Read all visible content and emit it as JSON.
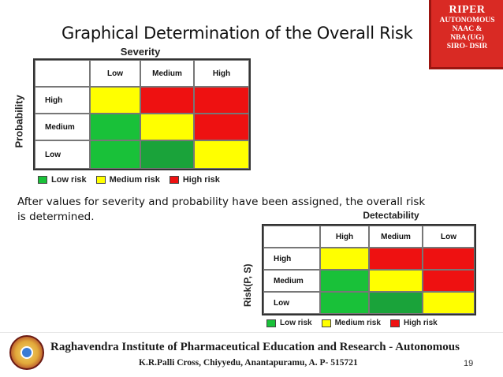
{
  "slide": {
    "title": "Graphical Determination of the Overall Risk",
    "body_text": "After values for severity and probability have been assigned, the overall risk is determined.",
    "page_number": "19"
  },
  "badge": {
    "title": "RIPER",
    "lines": [
      "AUTONOMOUS",
      "NAAC &",
      "NBA (UG)",
      "SIRO- DSIR"
    ]
  },
  "matrix1": {
    "top_axis": "Severity",
    "side_axis": "Probability",
    "col_headers": [
      "Low",
      "Medium",
      "High"
    ],
    "rows": [
      {
        "label": "High",
        "cells": [
          "yellow",
          "red",
          "red"
        ]
      },
      {
        "label": "Medium",
        "cells": [
          "green",
          "yellow",
          "red"
        ]
      },
      {
        "label": "Low",
        "cells": [
          "green",
          "green-dk",
          "yellow"
        ]
      }
    ]
  },
  "matrix2": {
    "top_axis": "Detectability",
    "side_axis": "Risk(P, S)",
    "col_headers": [
      "High",
      "Medium",
      "Low"
    ],
    "rows": [
      {
        "label": "High",
        "cells": [
          "yellow",
          "red",
          "red"
        ]
      },
      {
        "label": "Medium",
        "cells": [
          "green",
          "yellow",
          "red"
        ]
      },
      {
        "label": "Low",
        "cells": [
          "green",
          "green-dk",
          "yellow"
        ]
      }
    ]
  },
  "legend": [
    {
      "label": "Low risk",
      "color": "#19c139"
    },
    {
      "label": "Medium risk",
      "color": "#ffff00"
    },
    {
      "label": "High risk",
      "color": "#ee1111"
    }
  ],
  "footer": {
    "institution": "Raghavendra Institute of Pharmaceutical Education and Research - Autonomous",
    "address": "K.R.Palli Cross, Chiyyedu, Anantapuramu, A. P- 515721"
  }
}
